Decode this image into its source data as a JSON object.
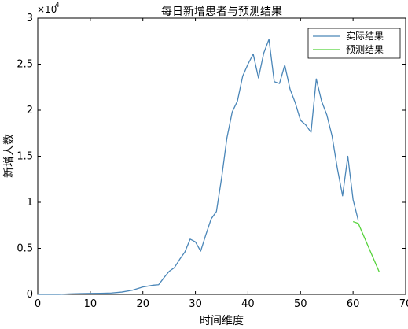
{
  "chart_data": {
    "type": "line",
    "title": "每日新增患者与预测结果",
    "xlabel": "时间维度",
    "ylabel": "新增人数",
    "xlim": [
      0,
      70
    ],
    "ylim": [
      0,
      30000
    ],
    "x_ticks": [
      "0",
      "10",
      "20",
      "30",
      "40",
      "50",
      "60",
      "70"
    ],
    "y_ticks": [
      "0",
      "0.5",
      "1",
      "1.5",
      "2",
      "2.5",
      "3"
    ],
    "y_exponent_label": "×10",
    "y_exponent_power": "4",
    "grid": false,
    "legend_position": "top-right",
    "series": [
      {
        "name": "实际结果",
        "color": "#4a86b8",
        "x": [
          0,
          2,
          4,
          6,
          8,
          10,
          12,
          14,
          16,
          18,
          20,
          22,
          23,
          24,
          25,
          26,
          27,
          28,
          29,
          30,
          31,
          32,
          33,
          34,
          35,
          36,
          37,
          38,
          39,
          40,
          41,
          42,
          43,
          44,
          45,
          46,
          47,
          48,
          49,
          50,
          51,
          52,
          53,
          54,
          55,
          56,
          57,
          58,
          59,
          60,
          61
        ],
        "y": [
          0,
          0,
          0,
          50,
          80,
          100,
          120,
          150,
          250,
          450,
          800,
          1000,
          1050,
          1800,
          2500,
          2900,
          3800,
          4600,
          6000,
          5700,
          4700,
          6500,
          8200,
          9000,
          12700,
          17000,
          19800,
          21000,
          23700,
          25000,
          26100,
          23500,
          26200,
          27700,
          23100,
          22900,
          24900,
          22300,
          20800,
          18900,
          18400,
          17600,
          23400,
          21000,
          19500,
          17200,
          13700,
          10700,
          15000,
          10300,
          8000
        ]
      },
      {
        "name": "预测结果",
        "color": "#55d33a",
        "x": [
          60,
          61,
          65
        ],
        "y": [
          7900,
          7700,
          2400
        ]
      }
    ]
  }
}
